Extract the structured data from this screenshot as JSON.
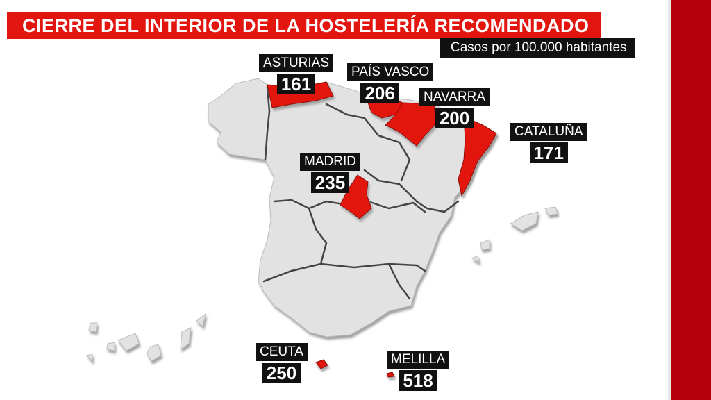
{
  "header": {
    "title": "CIERRE DEL INTERIOR DE LA HOSTELERÍA RECOMENDADO",
    "subtitle": "Casos por 100.000 habitantes"
  },
  "colors": {
    "highlight": "#e3150f",
    "land": "#e2e2e2",
    "accent_bar": "#b5000c",
    "label_bg": "#111111"
  },
  "regions": [
    {
      "name": "ASTURIAS",
      "value": "161"
    },
    {
      "name": "PAÍS VASCO",
      "value": "206"
    },
    {
      "name": "NAVARRA",
      "value": "200"
    },
    {
      "name": "CATALUÑA",
      "value": "171"
    },
    {
      "name": "MADRID",
      "value": "235"
    },
    {
      "name": "CEUTA",
      "value": "250"
    },
    {
      "name": "MELILLA",
      "value": "518"
    }
  ]
}
